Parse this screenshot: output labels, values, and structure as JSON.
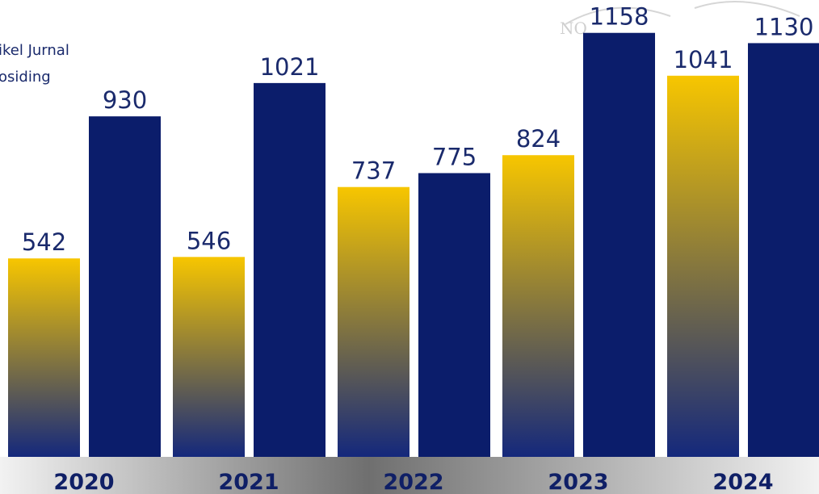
{
  "colors": {
    "journal_top": "#f7c600",
    "journal_bottom": "#14287c",
    "proceeding": "#0b1d6b",
    "label": "#1a2a6c",
    "year": "#0f1f66",
    "footer_dark": "#6f6f6f",
    "footer_light": "#f2f2f2",
    "seal": "#d0d0d0"
  },
  "legend": {
    "items": [
      "ikel Jurnal",
      "osiding"
    ]
  },
  "watermark": {
    "text_fragment": "NO"
  },
  "chart_data": {
    "type": "bar",
    "categories": [
      "2020",
      "2021",
      "2022",
      "2023",
      "2024"
    ],
    "series": [
      {
        "values": [
          542,
          546,
          737,
          824,
          1041
        ]
      },
      {
        "values": [
          930,
          1021,
          775,
          1158,
          1130
        ]
      }
    ],
    "ylim": [
      0,
      1200
    ],
    "grid": false
  }
}
